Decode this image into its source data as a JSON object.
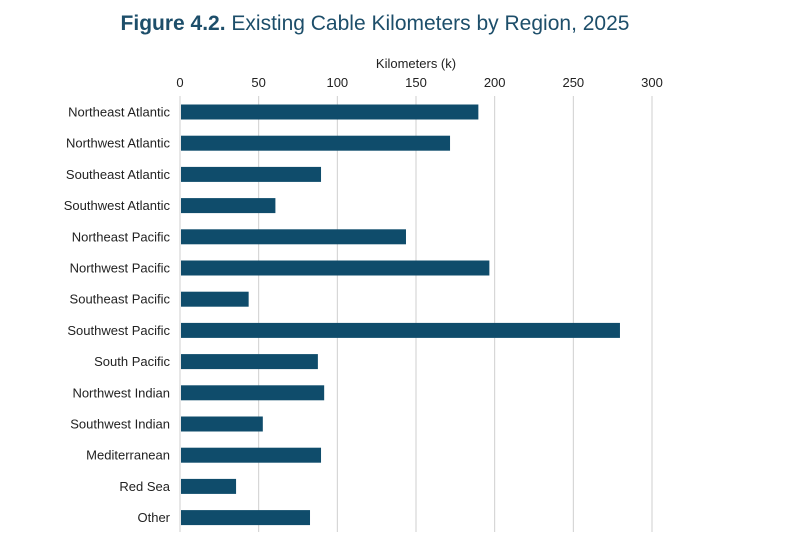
{
  "chart_data": {
    "type": "bar",
    "orientation": "horizontal",
    "title_prefix": "Figure 4.2.",
    "title": "Existing Cable Kilometers by Region, 2025",
    "xlabel": "Kilometers (k)",
    "xlabel_position": "top",
    "ylabel": "",
    "xlim": [
      0,
      300
    ],
    "x_ticks": [
      0,
      50,
      100,
      150,
      200,
      250,
      300
    ],
    "grid": "vertical",
    "legend": "none",
    "bar_color": "#0f4c6b",
    "categories": [
      "Northeast Atlantic",
      "Northwest Atlantic",
      "Southeast Atlantic",
      "Southwest Atlantic",
      "Northeast Pacific",
      "Northwest Pacific",
      "Southeast Pacific",
      "Southwest Pacific",
      "South Pacific",
      "Northwest Indian",
      "Southwest Indian",
      "Mediterranean",
      "Red Sea",
      "Other"
    ],
    "values": [
      189,
      171,
      89,
      60,
      143,
      196,
      43,
      279,
      87,
      91,
      52,
      89,
      35,
      82
    ]
  }
}
